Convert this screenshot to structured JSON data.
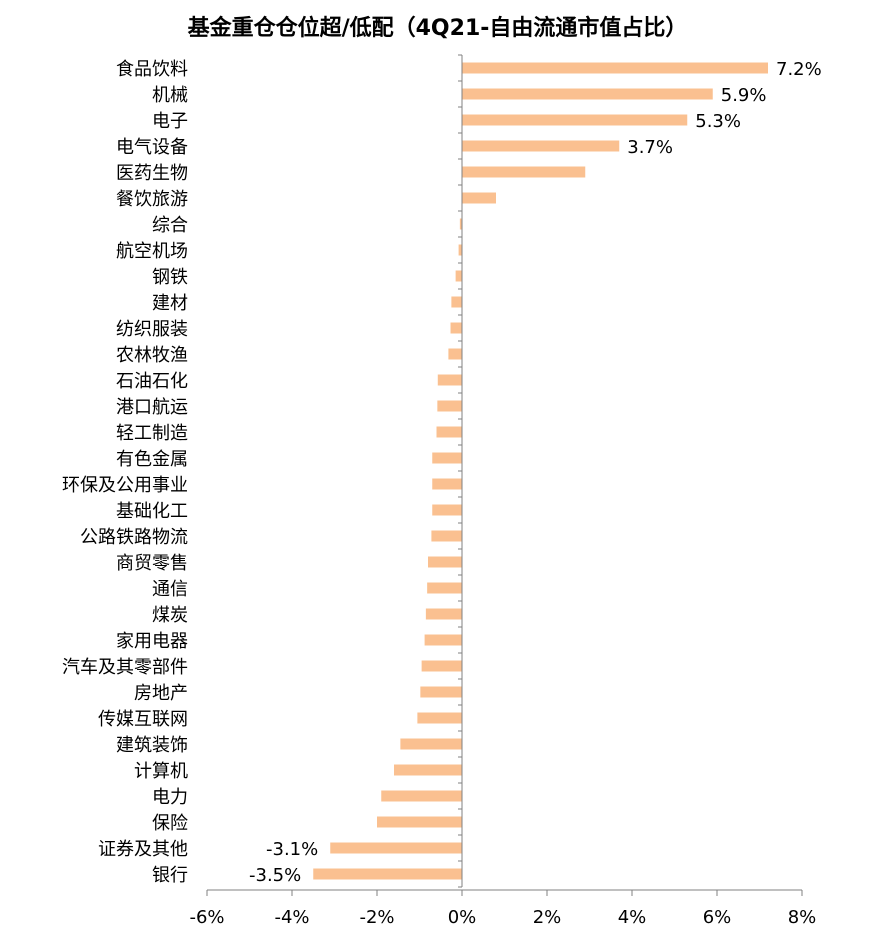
{
  "chart_data": {
    "type": "bar",
    "orientation": "horizontal",
    "title": "基金重仓仓位超/低配（4Q21-自由流通市值占比）",
    "xlabel": "",
    "ylabel": "",
    "xlim": [
      -6,
      8
    ],
    "xticks": [
      "-6%",
      "-4%",
      "-2%",
      "0%",
      "2%",
      "4%",
      "6%",
      "8%"
    ],
    "bar_color": "#FAC090",
    "grid": false,
    "legend": "none",
    "categories": [
      "食品饮料",
      "机械",
      "电子",
      "电气设备",
      "医药生物",
      "餐饮旅游",
      "综合",
      "航空机场",
      "钢铁",
      "建材",
      "纺织服装",
      "农林牧渔",
      "石油石化",
      "港口航运",
      "轻工制造",
      "有色金属",
      "环保及公用事业",
      "基础化工",
      "公路铁路物流",
      "商贸零售",
      "通信",
      "煤炭",
      "家用电器",
      "汽车及其零部件",
      "房地产",
      "传媒互联网",
      "建筑装饰",
      "计算机",
      "电力",
      "保险",
      "证券及其他",
      "银行"
    ],
    "values": [
      7.2,
      5.9,
      5.3,
      3.7,
      2.9,
      0.8,
      -0.05,
      -0.08,
      -0.15,
      -0.25,
      -0.27,
      -0.32,
      -0.57,
      -0.58,
      -0.6,
      -0.7,
      -0.7,
      -0.7,
      -0.72,
      -0.8,
      -0.82,
      -0.85,
      -0.88,
      -0.95,
      -0.98,
      -1.05,
      -1.45,
      -1.6,
      -1.9,
      -2.0,
      -3.1,
      -3.5
    ],
    "data_labels": [
      "7.2%",
      "5.9%",
      "5.3%",
      "3.7%",
      "",
      "",
      "",
      "",
      "",
      "",
      "",
      "",
      "",
      "",
      "",
      "",
      "",
      "",
      "",
      "",
      "",
      "",
      "",
      "",
      "",
      "",
      "",
      "",
      "",
      "",
      "-3.1%",
      "-3.5%"
    ]
  }
}
